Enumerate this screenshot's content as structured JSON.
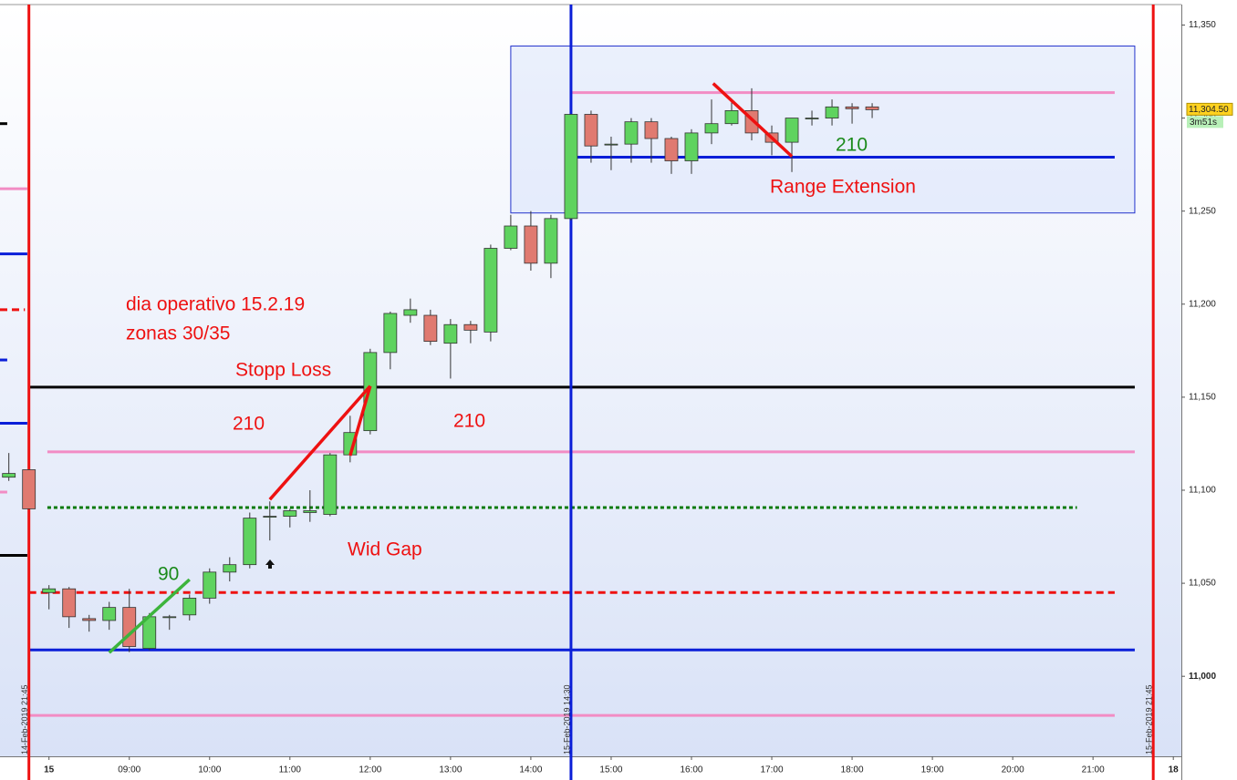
{
  "chart_data": {
    "type": "candlestick",
    "x": [
      7.5,
      7.75,
      8,
      8.25,
      8.5,
      8.75,
      9,
      9.25,
      9.5,
      9.75,
      10,
      10.25,
      10.5,
      10.75,
      11,
      11.25,
      11.5,
      11.75,
      12,
      12.25,
      12.5,
      12.75,
      13,
      13.25,
      13.5,
      13.75,
      14,
      14.25,
      14.5,
      14.75,
      15,
      15.25,
      15.5,
      15.75,
      16,
      16.25,
      16.5,
      16.75,
      17,
      17.25,
      17.5,
      17.75,
      18,
      18.25
    ],
    "open": [
      11107,
      11111,
      11045,
      11047,
      11031,
      11030,
      11037,
      11015,
      11032,
      11033,
      11042,
      11056,
      11060,
      11086,
      11086,
      11088,
      11087,
      11119,
      11132,
      11174,
      11194,
      11194,
      11179,
      11189,
      11185,
      11230,
      11242,
      11222,
      11246,
      11302,
      11286,
      11286,
      11298,
      11289,
      11277,
      11292,
      11297,
      11304,
      11292,
      11287,
      11300,
      11300,
      11306,
      11306
    ],
    "high": [
      11120,
      11111,
      11049,
      11048,
      11033,
      11040,
      11047,
      11034,
      11033,
      11044,
      11058,
      11064,
      11088,
      11094,
      11090,
      11100,
      11120,
      11140,
      11176,
      11196,
      11203,
      11197,
      11192,
      11191,
      11232,
      11248,
      11250,
      11248,
      11302,
      11304,
      11290,
      11300,
      11300,
      11290,
      11294,
      11310,
      11310,
      11316,
      11296,
      11300,
      11304,
      11310,
      11308,
      11308
    ],
    "low": [
      11105,
      11090,
      11036,
      11026,
      11024,
      11025,
      11013,
      11014,
      11025,
      11030,
      11039,
      11051,
      11058,
      11073,
      11080,
      11083,
      11086,
      11115,
      11130,
      11165,
      11190,
      11178,
      11160,
      11179,
      11180,
      11229,
      11218,
      11214,
      11245,
      11276,
      11272,
      11276,
      11276,
      11270,
      11270,
      11286,
      11296,
      11288,
      11280,
      11271,
      11296,
      11296,
      11297,
      11300
    ],
    "close": [
      11109,
      11090,
      11047,
      11032,
      11030,
      11037,
      11016,
      11032,
      11032,
      11042,
      11056,
      11060,
      11085,
      11086,
      11089,
      11089,
      11119,
      11131,
      11174,
      11195,
      11197,
      11180,
      11189,
      11186,
      11230,
      11242,
      11222,
      11246,
      11302,
      11285,
      11286,
      11298,
      11289,
      11277,
      11292,
      11297,
      11304,
      11292,
      11287,
      11300,
      11300,
      11306,
      11305,
      11304.5
    ],
    "up_color": "#5fd35f",
    "down_color": "#e07a70",
    "xlim": [
      7.39,
      22.1
    ],
    "xticks": [
      {
        "value": 8,
        "label": "15"
      },
      {
        "value": 9,
        "label": "09:00"
      },
      {
        "value": 10,
        "label": "10:00"
      },
      {
        "value": 11,
        "label": "11:00"
      },
      {
        "value": 12,
        "label": "12:00"
      },
      {
        "value": 13,
        "label": "13:00"
      },
      {
        "value": 14,
        "label": "14:00"
      },
      {
        "value": 15,
        "label": "15:00"
      },
      {
        "value": 16,
        "label": "16:00"
      },
      {
        "value": 17,
        "label": "17:00"
      },
      {
        "value": 18,
        "label": "18:00"
      },
      {
        "value": 19,
        "label": "19:00"
      },
      {
        "value": 20,
        "label": "20:00"
      },
      {
        "value": 21,
        "label": "21:00"
      },
      {
        "value": 22,
        "label": "18"
      }
    ],
    "ylim": [
      10957,
      11361
    ],
    "yticks": [
      {
        "value": 11000,
        "label": "11,000"
      },
      {
        "value": 11050,
        "label": "11,050"
      },
      {
        "value": 11100,
        "label": "11,100"
      },
      {
        "value": 11150,
        "label": "11,150"
      },
      {
        "value": 11200,
        "label": "11,200"
      },
      {
        "value": 11250,
        "label": "11,250"
      },
      {
        "value": 11300,
        "label": "11,300"
      },
      {
        "value": 11350,
        "label": "11,350"
      }
    ],
    "last_price": {
      "value": 11304.5,
      "label": "11,304.50"
    },
    "timer": "3m51s",
    "hlines": [
      {
        "value": 11155.4,
        "x": [
          7.75,
          21.52
        ],
        "color": "#000000",
        "style": "solid"
      },
      {
        "value": 11120.6,
        "x": [
          7.98,
          21.52
        ],
        "color": "#f28cc4",
        "style": "solid"
      },
      {
        "value": 11090.7,
        "x": [
          7.98,
          20.8
        ],
        "color": "#0a7a0a",
        "style": "dotted"
      },
      {
        "value": 11045,
        "x": [
          7.75,
          21.27
        ],
        "color": "#ee1111",
        "style": "dashed"
      },
      {
        "value": 11014.2,
        "x": [
          7.75,
          21.52
        ],
        "color": "#0a1ed8",
        "style": "solid"
      },
      {
        "value": 10979,
        "x": [
          7.75,
          21.27
        ],
        "color": "#f28cc4",
        "style": "solid"
      },
      {
        "value": 11313.7,
        "x": [
          14.5,
          21.27
        ],
        "color": "#f28cc4",
        "style": "solid"
      },
      {
        "value": 11279,
        "x": [
          14.5,
          21.27
        ],
        "color": "#0a1ed8",
        "style": "solid"
      },
      {
        "value": 11297,
        "x": [
          7.39,
          7.48
        ],
        "color": "#000000",
        "style": "solid"
      },
      {
        "value": 11262,
        "x": [
          7.39,
          7.73
        ],
        "color": "#f28cc4",
        "style": "solid"
      },
      {
        "value": 11227,
        "x": [
          7.39,
          7.73
        ],
        "color": "#0a1ed8",
        "style": "solid"
      },
      {
        "value": 11197,
        "x": [
          7.39,
          7.7
        ],
        "color": "#ee1111",
        "style": "dashed"
      },
      {
        "value": 11170,
        "x": [
          7.39,
          7.48
        ],
        "color": "#0a1ed8",
        "style": "solid"
      },
      {
        "value": 11136,
        "x": [
          7.39,
          7.73
        ],
        "color": "#0a1ed8",
        "style": "solid"
      },
      {
        "value": 11099,
        "x": [
          7.39,
          7.48
        ],
        "color": "#f28cc4",
        "style": "solid"
      },
      {
        "value": 11065,
        "x": [
          7.39,
          7.73
        ],
        "color": "#000000",
        "style": "solid"
      }
    ],
    "vlines": [
      {
        "x": 7.75,
        "color": "#ee1111",
        "label": "14-Feb-2019 21:45"
      },
      {
        "x": 14.5,
        "color": "#0a1ed8",
        "label": "15-Feb-2019 14:30"
      },
      {
        "x": 21.75,
        "color": "#ee1111",
        "label": "15-Feb-2019 21:45"
      }
    ],
    "range_box": {
      "x": [
        13.75,
        21.52
      ],
      "y": [
        11249,
        11338.7
      ]
    },
    "segments": [
      {
        "x": [
          8.75,
          9.75
        ],
        "y": [
          11012.7,
          11052
        ],
        "color": "#3cb43c"
      },
      {
        "x": [
          10.75,
          12
        ],
        "y": [
          11095,
          11156
        ],
        "color": "#ee1111"
      },
      {
        "x": [
          11.75,
          12
        ],
        "y": [
          11118.6,
          11156
        ],
        "color": "#ee1111"
      },
      {
        "x": [
          16.27,
          17.25
        ],
        "y": [
          11318.6,
          11279.4
        ],
        "color": "#ee1111"
      }
    ],
    "annotations": [
      {
        "text": "dia  operativo 15.2.19",
        "color": "#ee1111"
      },
      {
        "text": "zonas 30/35",
        "color": "#ee1111"
      },
      {
        "text": "Stopp Loss",
        "color": "#ee1111"
      },
      {
        "text": "210",
        "color": "#ee1111"
      },
      {
        "text": "210",
        "color": "#ee1111"
      },
      {
        "text": "Wid Gap",
        "color": "#ee1111"
      },
      {
        "text": "90",
        "color": "#1a8a1a"
      },
      {
        "text": "210",
        "color": "#1a8a1a"
      },
      {
        "text": "Range Extension",
        "color": "#ee1111"
      }
    ]
  }
}
